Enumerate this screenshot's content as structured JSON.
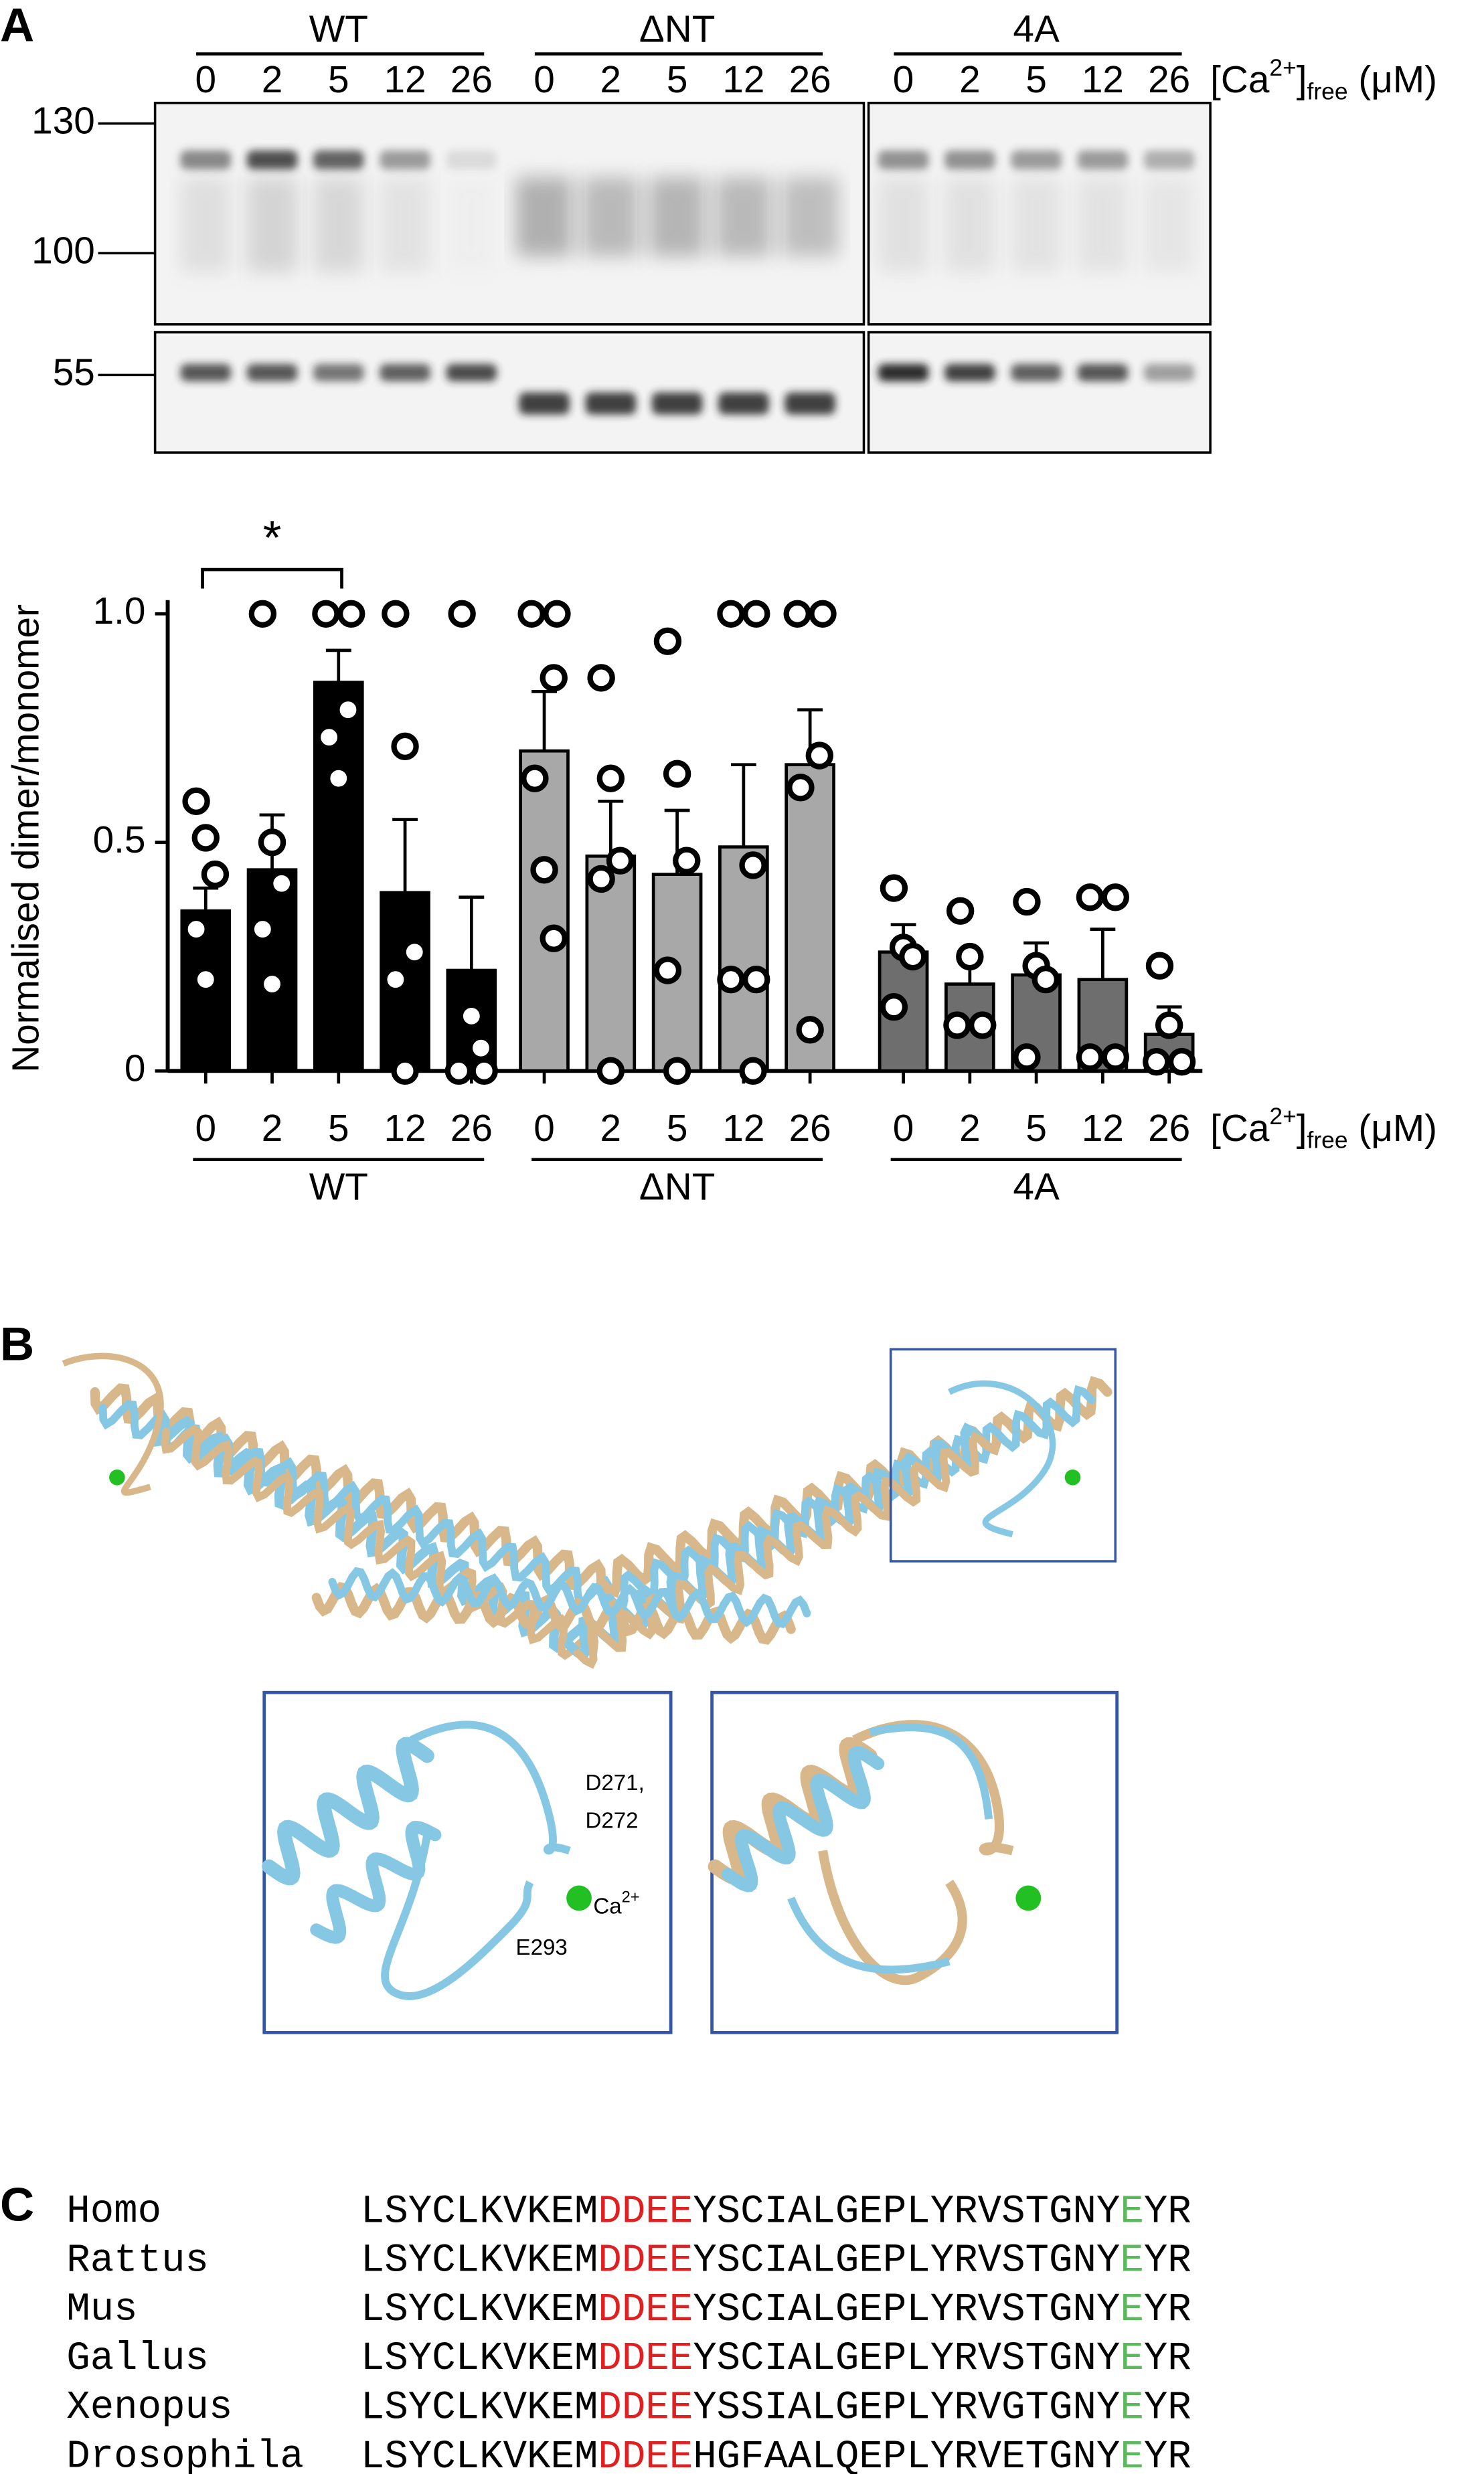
{
  "panel_labels": [
    "A",
    "B",
    "C"
  ],
  "blot": {
    "groups": [
      "WT",
      "ΔNT",
      "4A"
    ],
    "lanes": [
      "0",
      "2",
      "5",
      "12",
      "26"
    ],
    "markers": [
      "130",
      "100",
      "55"
    ],
    "condition": [
      "[Ca",
      "2+",
      "]",
      "free",
      " (μM)"
    ]
  },
  "chart_data": {
    "type": "bar",
    "ylabel": "Normalised dimer/monomer",
    "annotation": "*",
    "categories": [
      "0",
      "2",
      "5",
      "12",
      "26"
    ],
    "condition": [
      "[Ca",
      "2+",
      "]",
      "free",
      " (μM)"
    ],
    "ylim": [
      0,
      1.03
    ],
    "yticks": [
      0,
      0.5,
      {
        "value": 1,
        "label": "1.0"
      }
    ],
    "series": [
      {
        "name": "WT",
        "color": "#000000",
        "values": [
          0.35,
          0.44,
          0.85,
          0.39,
          0.22
        ],
        "errors": [
          0.05,
          0.12,
          0.07,
          0.16,
          0.16
        ],
        "points": [
          [
            0.59,
            0.51,
            0.43,
            0.31,
            0.2
          ],
          [
            1.0,
            0.5,
            0.41,
            0.31,
            0.19
          ],
          [
            1.0,
            1.0,
            0.79,
            0.73,
            0.64
          ],
          [
            1.0,
            0.71,
            0.26,
            0.2,
            0.0
          ],
          [
            1.0,
            0.12,
            0.05,
            0.0,
            0.0
          ]
        ]
      },
      {
        "name": "ΔNT",
        "color": "#a8a8a8",
        "values": [
          0.7,
          0.47,
          0.43,
          0.49,
          0.67
        ],
        "errors": [
          0.13,
          0.12,
          0.14,
          0.18,
          0.12
        ],
        "points": [
          [
            1.0,
            1.0,
            0.86,
            0.64,
            0.44,
            0.29
          ],
          [
            0.86,
            0.64,
            0.46,
            0.42,
            0.0
          ],
          [
            0.94,
            0.65,
            0.46,
            0.22,
            0.0
          ],
          [
            1.0,
            1.0,
            0.45,
            0.2,
            0.2,
            0.0
          ],
          [
            1.0,
            1.0,
            0.69,
            0.62,
            0.09
          ]
        ]
      },
      {
        "name": "4A",
        "color": "#6e6e6e",
        "values": [
          0.26,
          0.19,
          0.21,
          0.2,
          0.08
        ],
        "errors": [
          0.06,
          0.07,
          0.07,
          0.11,
          0.06
        ],
        "points": [
          [
            0.4,
            0.27,
            0.25,
            0.14
          ],
          [
            0.35,
            0.25,
            0.1,
            0.1
          ],
          [
            0.37,
            0.23,
            0.2,
            0.03
          ],
          [
            0.38,
            0.38,
            0.03,
            0.03
          ],
          [
            0.23,
            0.1,
            0.02,
            0.02
          ]
        ]
      }
    ]
  },
  "structure": {
    "residues_a": "D271,",
    "residues_b": "D272",
    "ion": "Ca",
    "ion_charge": "2+",
    "residue_c": "E293"
  },
  "alignment": {
    "rows": [
      {
        "species": "Homo",
        "segments": [
          "LSYCLKVKEM",
          "DDEE",
          "YSCIALGEPLYRVSTGNY",
          "E",
          "YR"
        ]
      },
      {
        "species": "Rattus",
        "segments": [
          "LSYCLKVKEM",
          "DDEE",
          "YSCIALGEPLYRVSTGNY",
          "E",
          "YR"
        ]
      },
      {
        "species": "Mus",
        "segments": [
          "LSYCLKVKEM",
          "DDEE",
          "YSCIALGEPLYRVSTGNY",
          "E",
          "YR"
        ]
      },
      {
        "species": "Gallus",
        "segments": [
          "LSYCLKVKEM",
          "DDEE",
          "YSCIALGEPLYRVSTGNY",
          "E",
          "YR"
        ]
      },
      {
        "species": "Xenopus",
        "segments": [
          "LSYCLKVKEM",
          "DDEE",
          "YSSIALGEPLYRVGTGNY",
          "E",
          "YR"
        ]
      },
      {
        "species": "Drosophila",
        "segments": [
          "LSYCLKVKEM",
          "DDEE",
          "HGFAALQEPLYRVETGNY",
          "E",
          "YR"
        ]
      }
    ]
  }
}
